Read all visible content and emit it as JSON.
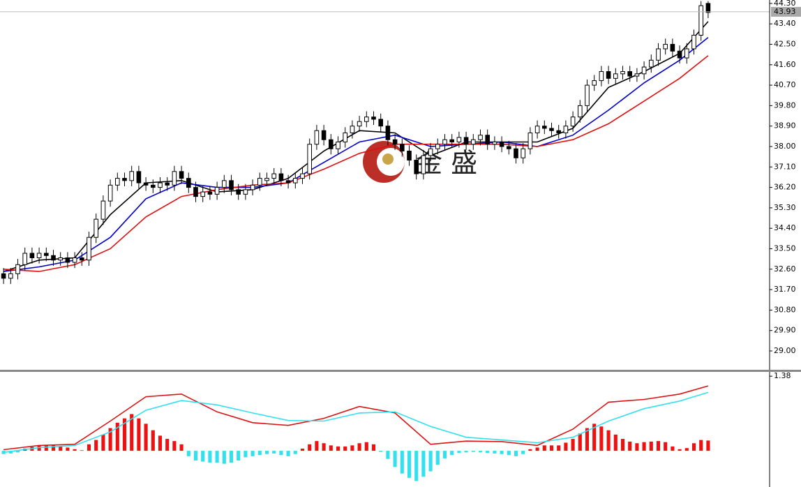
{
  "chart_data": [
    {
      "type": "candlestick",
      "up_color": "#ffffff",
      "down_color": "#000000",
      "open": [
        32.4,
        32.2,
        32.4,
        32.8,
        33.3,
        33.1,
        33.3,
        33.2,
        33.0,
        33.1,
        32.9,
        33.1,
        33.0,
        34.0,
        34.8,
        35.6,
        36.3,
        36.6,
        36.5,
        36.9,
        36.4,
        36.3,
        36.2,
        36.4,
        36.3,
        36.9,
        36.6,
        36.2,
        35.8,
        36.0,
        35.9,
        36.2,
        36.5,
        36.1,
        35.9,
        36.1,
        36.3,
        36.5,
        36.6,
        36.8,
        36.5,
        36.4,
        36.6,
        36.8,
        38.1,
        38.7,
        38.3,
        37.9,
        38.2,
        38.6,
        38.9,
        39.1,
        39.3,
        39.2,
        38.9,
        38.3,
        38.1,
        37.8,
        37.4,
        36.8,
        37.6,
        37.9,
        38.1,
        38.3,
        38.2,
        38.4,
        38.1,
        38.3,
        38.5,
        38.1,
        38.2,
        38.0,
        37.9,
        37.5,
        37.9,
        38.6,
        38.9,
        38.8,
        38.7,
        38.6,
        38.9,
        39.3,
        39.8,
        40.7,
        40.9,
        41.3,
        41.0,
        41.2,
        41.3,
        41.1,
        41.2,
        41.5,
        41.8,
        42.3,
        42.5,
        42.2,
        41.9,
        42.3,
        42.9,
        44.3
      ],
      "high": [
        32.65,
        32.65,
        33.05,
        33.55,
        33.55,
        33.55,
        33.55,
        33.45,
        33.35,
        33.35,
        33.35,
        33.35,
        34.25,
        35.05,
        35.85,
        36.55,
        36.85,
        36.85,
        37.15,
        37.15,
        36.65,
        36.55,
        36.65,
        36.65,
        37.15,
        37.15,
        36.85,
        36.45,
        36.25,
        36.25,
        36.45,
        36.75,
        36.75,
        36.35,
        36.35,
        36.55,
        36.85,
        36.85,
        37.05,
        37.05,
        36.75,
        36.85,
        37.05,
        38.35,
        38.95,
        38.95,
        38.55,
        38.45,
        38.85,
        39.15,
        39.35,
        39.55,
        39.55,
        39.45,
        39.15,
        38.55,
        38.35,
        38.05,
        37.65,
        37.85,
        38.15,
        38.35,
        38.55,
        38.55,
        38.65,
        38.65,
        38.55,
        38.75,
        38.75,
        38.45,
        38.45,
        38.25,
        38.15,
        38.15,
        38.85,
        39.15,
        39.15,
        39.05,
        38.95,
        39.15,
        39.55,
        40.05,
        40.95,
        41.15,
        41.55,
        41.55,
        41.45,
        41.55,
        41.55,
        41.45,
        41.75,
        42.05,
        42.55,
        42.75,
        42.75,
        42.45,
        42.55,
        43.15,
        44.4,
        44.4
      ],
      "low": [
        31.95,
        31.95,
        32.15,
        32.55,
        32.85,
        32.85,
        32.95,
        32.75,
        32.75,
        32.65,
        32.65,
        32.75,
        32.75,
        33.75,
        34.55,
        35.35,
        36.05,
        36.25,
        36.25,
        36.15,
        36.05,
        35.95,
        35.95,
        36.05,
        36.05,
        36.35,
        35.95,
        35.55,
        35.55,
        35.65,
        35.65,
        35.95,
        35.85,
        35.65,
        35.65,
        35.85,
        36.05,
        36.25,
        36.35,
        36.25,
        36.15,
        36.15,
        36.35,
        36.55,
        37.85,
        38.05,
        37.65,
        37.65,
        37.95,
        38.35,
        38.65,
        38.85,
        38.95,
        38.65,
        38.05,
        37.85,
        37.55,
        37.15,
        36.55,
        36.55,
        37.35,
        37.65,
        37.85,
        37.95,
        37.95,
        37.85,
        37.85,
        38.05,
        37.85,
        37.85,
        37.75,
        37.65,
        37.25,
        37.25,
        37.65,
        38.35,
        38.55,
        38.45,
        38.35,
        38.35,
        38.65,
        39.05,
        39.55,
        40.45,
        40.65,
        40.75,
        40.75,
        40.95,
        40.85,
        40.85,
        40.95,
        41.25,
        41.55,
        42.05,
        41.95,
        41.65,
        41.65,
        42.05,
        42.65,
        43.65
      ],
      "close": [
        32.2,
        32.4,
        32.8,
        33.3,
        33.1,
        33.3,
        33.2,
        33.0,
        33.1,
        32.9,
        33.1,
        33.0,
        34.0,
        34.8,
        35.6,
        36.3,
        36.6,
        36.5,
        36.9,
        36.4,
        36.3,
        36.2,
        36.4,
        36.3,
        36.9,
        36.6,
        36.2,
        35.8,
        36.0,
        35.9,
        36.2,
        36.5,
        36.1,
        35.9,
        36.1,
        36.3,
        36.6,
        36.6,
        36.8,
        36.5,
        36.4,
        36.6,
        36.8,
        38.1,
        38.7,
        38.3,
        37.9,
        38.2,
        38.6,
        38.9,
        39.1,
        39.3,
        39.2,
        38.9,
        38.3,
        38.1,
        37.8,
        37.4,
        36.8,
        37.6,
        37.9,
        38.1,
        38.3,
        38.2,
        38.4,
        38.1,
        38.3,
        38.5,
        38.1,
        38.2,
        38.0,
        37.9,
        37.5,
        37.9,
        38.6,
        38.9,
        38.8,
        38.7,
        38.6,
        38.9,
        39.3,
        39.8,
        40.7,
        40.9,
        41.3,
        41.0,
        41.2,
        41.3,
        41.1,
        41.2,
        41.5,
        41.8,
        42.3,
        42.5,
        42.2,
        41.9,
        42.3,
        42.9,
        44.2,
        43.9
      ],
      "lines": [
        {
          "color": "#000000",
          "x": [
            0,
            5,
            10,
            15,
            20,
            25,
            30,
            35,
            40,
            45,
            50,
            55,
            60,
            65,
            70,
            75,
            80,
            85,
            90,
            95,
            99
          ],
          "values": [
            32.5,
            33.0,
            33.1,
            35.0,
            36.4,
            36.5,
            36.0,
            36.1,
            36.6,
            37.8,
            38.7,
            38.6,
            37.6,
            38.2,
            38.2,
            38.2,
            38.8,
            40.6,
            41.3,
            42.1,
            43.5
          ]
        },
        {
          "color": "#0000cc",
          "x": [
            0,
            5,
            10,
            15,
            20,
            25,
            30,
            35,
            40,
            45,
            50,
            55,
            60,
            65,
            70,
            75,
            80,
            85,
            90,
            95,
            99
          ],
          "values": [
            32.5,
            32.7,
            33.0,
            34.0,
            35.7,
            36.4,
            36.2,
            36.2,
            36.4,
            37.3,
            38.2,
            38.5,
            38.0,
            38.1,
            38.2,
            38.0,
            38.5,
            39.6,
            40.8,
            41.8,
            42.8
          ]
        },
        {
          "color": "#dd1111",
          "x": [
            0,
            5,
            10,
            15,
            20,
            25,
            30,
            35,
            40,
            45,
            50,
            55,
            60,
            65,
            70,
            75,
            80,
            85,
            90,
            95,
            99
          ],
          "values": [
            32.6,
            32.5,
            32.8,
            33.5,
            34.9,
            35.8,
            36.1,
            36.3,
            36.4,
            37.0,
            37.7,
            38.1,
            38.1,
            38.1,
            38.1,
            38.0,
            38.3,
            39.0,
            40.0,
            41.0,
            42.0
          ]
        }
      ],
      "last_price": 43.93,
      "ylim": [
        28.14,
        44.45
      ],
      "yticks": [
        {
          "value": 29,
          "label": "29.00"
        },
        {
          "value": 29.9,
          "label": "29.90"
        },
        {
          "value": 30.8,
          "label": "30.80"
        },
        {
          "value": 31.7,
          "label": "31.70"
        },
        {
          "value": 32.6,
          "label": "32.60"
        },
        {
          "value": 33.5,
          "label": "33.50"
        },
        {
          "value": 34.4,
          "label": "34.40"
        },
        {
          "value": 35.3,
          "label": "35.30"
        },
        {
          "value": 36.2,
          "label": "36.20"
        },
        {
          "value": 37.1,
          "label": "37.10"
        },
        {
          "value": 38,
          "label": "38.00"
        },
        {
          "value": 38.9,
          "label": "38.90"
        },
        {
          "value": 39.8,
          "label": "39.80"
        },
        {
          "value": 40.7,
          "label": "40.70"
        },
        {
          "value": 41.6,
          "label": "41.60"
        },
        {
          "value": 42.5,
          "label": "42.50"
        },
        {
          "value": 43.4,
          "label": "43.40"
        },
        {
          "value": 44.3,
          "label": "44.30"
        }
      ]
    },
    {
      "type": "bar",
      "up_color": "#ee1111",
      "down_color": "#33e0ee",
      "values": [
        -0.06,
        -0.05,
        -0.03,
        0.04,
        0.07,
        0.09,
        0.11,
        0.1,
        0.08,
        0.06,
        0.03,
        0.01,
        0.12,
        0.2,
        0.3,
        0.42,
        0.52,
        0.6,
        0.68,
        0.6,
        0.5,
        0.38,
        0.28,
        0.22,
        0.18,
        0.12,
        -0.1,
        -0.18,
        -0.2,
        -0.22,
        -0.22,
        -0.24,
        -0.22,
        -0.18,
        -0.12,
        -0.1,
        -0.08,
        -0.06,
        -0.05,
        -0.08,
        -0.1,
        -0.06,
        0.04,
        0.12,
        0.18,
        0.14,
        0.1,
        0.08,
        0.08,
        0.1,
        0.14,
        0.16,
        0.12,
        -0.02,
        -0.15,
        -0.3,
        -0.42,
        -0.5,
        -0.56,
        -0.48,
        -0.38,
        -0.26,
        -0.14,
        -0.08,
        -0.04,
        -0.03,
        -0.02,
        -0.03,
        -0.04,
        -0.05,
        -0.06,
        -0.08,
        -0.1,
        -0.06,
        0.03,
        0.06,
        0.1,
        0.1,
        0.1,
        0.15,
        0.22,
        0.32,
        0.42,
        0.5,
        0.45,
        0.38,
        0.3,
        0.22,
        0.17,
        0.14,
        0.16,
        0.17,
        0.18,
        0.16,
        0.08,
        0.03,
        0.05,
        0.14,
        0.2,
        0.19
      ],
      "lines": [
        {
          "color": "#dd1111",
          "x": [
            0,
            5,
            10,
            15,
            20,
            25,
            30,
            35,
            40,
            45,
            50,
            55,
            60,
            65,
            70,
            75,
            80,
            85,
            90,
            95,
            99
          ],
          "values": [
            0.02,
            0.1,
            0.12,
            0.55,
            1.0,
            1.05,
            0.72,
            0.52,
            0.47,
            0.6,
            0.82,
            0.7,
            0.12,
            0.18,
            0.17,
            0.1,
            0.4,
            0.9,
            0.95,
            1.05,
            1.2
          ]
        },
        {
          "color": "#33e0ee",
          "x": [
            0,
            5,
            10,
            15,
            20,
            25,
            30,
            35,
            40,
            45,
            50,
            55,
            60,
            65,
            70,
            75,
            80,
            85,
            90,
            95,
            99
          ],
          "values": [
            -0.03,
            0.06,
            0.1,
            0.35,
            0.75,
            0.93,
            0.85,
            0.7,
            0.56,
            0.55,
            0.7,
            0.72,
            0.45,
            0.25,
            0.2,
            0.15,
            0.25,
            0.55,
            0.78,
            0.92,
            1.08
          ]
        }
      ],
      "ylim": [
        -0.67,
        1.46
      ],
      "yticks": [
        1.38
      ]
    }
  ],
  "watermark": "金 盛"
}
